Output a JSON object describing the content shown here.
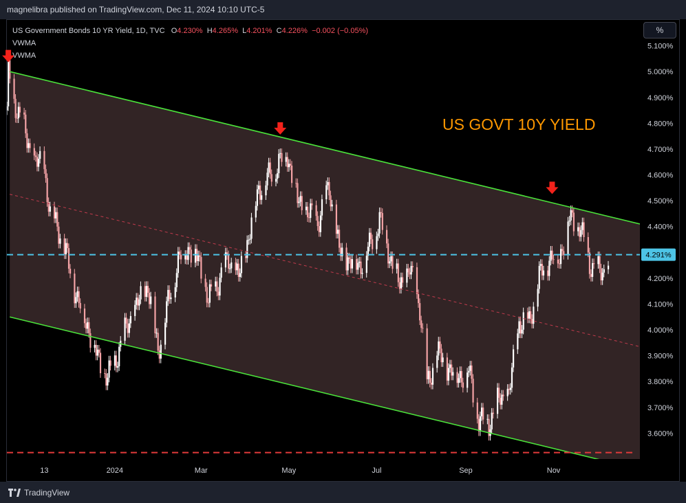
{
  "header": {
    "published": "magnelibra published on TradingView.com, Dec 11, 2024 10:10 UTC-5"
  },
  "legend": {
    "symbol": "US Government Bonds 10 YR Yield, 1D, TVC",
    "o_label": "O",
    "o_value": "4.230%",
    "h_label": "H",
    "h_value": "4.265%",
    "l_label": "L",
    "l_value": "4.201%",
    "c_label": "C",
    "c_value": "4.226%",
    "change": "−0.002 (−0.05%)",
    "indicators": [
      "VWMA",
      "VWMA"
    ]
  },
  "toolbar": {
    "percent_button": "%"
  },
  "annotation": {
    "title": "US GOVT 10Y YIELD",
    "color": "#ff9800"
  },
  "footer": {
    "brand": "TradingView"
  },
  "chart_data": {
    "type": "candlestick",
    "y_axis": {
      "min": 3.5,
      "max": 5.2,
      "unit": "%",
      "ticks": [
        "5.100%",
        "5.000%",
        "4.900%",
        "4.800%",
        "4.700%",
        "4.600%",
        "4.500%",
        "4.400%",
        "4.300%",
        "4.200%",
        "4.100%",
        "4.000%",
        "3.900%",
        "3.800%",
        "3.700%",
        "3.600%"
      ],
      "tick_values": [
        5.1,
        5.0,
        4.9,
        4.8,
        4.7,
        4.6,
        4.5,
        4.4,
        4.3,
        4.2,
        4.1,
        4.0,
        3.9,
        3.8,
        3.7,
        3.6
      ]
    },
    "x_axis": {
      "labels": [
        "13",
        "2024",
        "Mar",
        "May",
        "Jul",
        "Sep",
        "Nov"
      ],
      "label_dates": [
        "2023-11-13",
        "2024-01-01",
        "2024-03-01",
        "2024-05-01",
        "2024-07-01",
        "2024-09-01",
        "2024-11-01"
      ],
      "start": "2023-10-18",
      "end": "2024-12-31"
    },
    "current_price": {
      "value": 4.291,
      "label": "4.291%",
      "color": "#4dc4e6"
    },
    "support_line": {
      "value": 3.525,
      "color": "#e23a3a"
    },
    "channel": {
      "color": "#4ae03a",
      "upper": [
        [
          "2023-10-20",
          5.0
        ],
        [
          "2024-12-31",
          4.41
        ]
      ],
      "lower": [
        [
          "2023-10-20",
          4.05
        ],
        [
          "2024-12-31",
          3.46
        ]
      ],
      "mid": [
        [
          "2023-10-20",
          4.525
        ],
        [
          "2024-12-31",
          3.935
        ]
      ],
      "mid_color": "#c23b4d",
      "fill": "#3b2a2c"
    },
    "arrows": [
      {
        "date": "2023-10-19",
        "value": 5.02
      },
      {
        "date": "2024-04-25",
        "value": 4.74
      },
      {
        "date": "2024-10-31",
        "value": 4.51
      }
    ],
    "close_series": [
      [
        "2023-10-18",
        4.85
      ],
      [
        "2023-10-19",
        4.99
      ],
      [
        "2023-10-23",
        4.88
      ],
      [
        "2023-10-27",
        4.84
      ],
      [
        "2023-11-01",
        4.73
      ],
      [
        "2023-11-06",
        4.65
      ],
      [
        "2023-11-13",
        4.63
      ],
      [
        "2023-11-17",
        4.44
      ],
      [
        "2023-11-22",
        4.41
      ],
      [
        "2023-11-29",
        4.27
      ],
      [
        "2023-12-06",
        4.12
      ],
      [
        "2023-12-13",
        4.02
      ],
      [
        "2023-12-20",
        3.89
      ],
      [
        "2023-12-27",
        3.81
      ],
      [
        "2024-01-03",
        3.91
      ],
      [
        "2024-01-10",
        4.02
      ],
      [
        "2024-01-17",
        4.1
      ],
      [
        "2024-01-24",
        4.17
      ],
      [
        "2024-01-31",
        3.92
      ],
      [
        "2024-02-07",
        4.1
      ],
      [
        "2024-02-14",
        4.27
      ],
      [
        "2024-02-21",
        4.32
      ],
      [
        "2024-02-28",
        4.27
      ],
      [
        "2024-03-06",
        4.11
      ],
      [
        "2024-03-13",
        4.19
      ],
      [
        "2024-03-20",
        4.27
      ],
      [
        "2024-03-27",
        4.2
      ],
      [
        "2024-04-03",
        4.36
      ],
      [
        "2024-04-10",
        4.55
      ],
      [
        "2024-04-17",
        4.59
      ],
      [
        "2024-04-24",
        4.65
      ],
      [
        "2024-04-30",
        4.68
      ],
      [
        "2024-05-07",
        4.5
      ],
      [
        "2024-05-14",
        4.45
      ],
      [
        "2024-05-21",
        4.42
      ],
      [
        "2024-05-29",
        4.55
      ],
      [
        "2024-06-05",
        4.3
      ],
      [
        "2024-06-12",
        4.27
      ],
      [
        "2024-06-19",
        4.25
      ],
      [
        "2024-06-26",
        4.32
      ],
      [
        "2024-07-03",
        4.43
      ],
      [
        "2024-07-10",
        4.29
      ],
      [
        "2024-07-17",
        4.17
      ],
      [
        "2024-07-24",
        4.23
      ],
      [
        "2024-07-31",
        4.09
      ],
      [
        "2024-08-05",
        3.78
      ],
      [
        "2024-08-12",
        3.91
      ],
      [
        "2024-08-19",
        3.86
      ],
      [
        "2024-08-26",
        3.82
      ],
      [
        "2024-09-03",
        3.84
      ],
      [
        "2024-09-10",
        3.65
      ],
      [
        "2024-09-17",
        3.64
      ],
      [
        "2024-09-24",
        3.73
      ],
      [
        "2024-10-01",
        3.75
      ],
      [
        "2024-10-08",
        4.03
      ],
      [
        "2024-10-15",
        4.03
      ],
      [
        "2024-10-22",
        4.2
      ],
      [
        "2024-10-29",
        4.28
      ],
      [
        "2024-11-05",
        4.28
      ],
      [
        "2024-11-12",
        4.43
      ],
      [
        "2024-11-19",
        4.4
      ],
      [
        "2024-11-26",
        4.26
      ],
      [
        "2024-12-03",
        4.22
      ],
      [
        "2024-12-10",
        4.23
      ]
    ]
  }
}
